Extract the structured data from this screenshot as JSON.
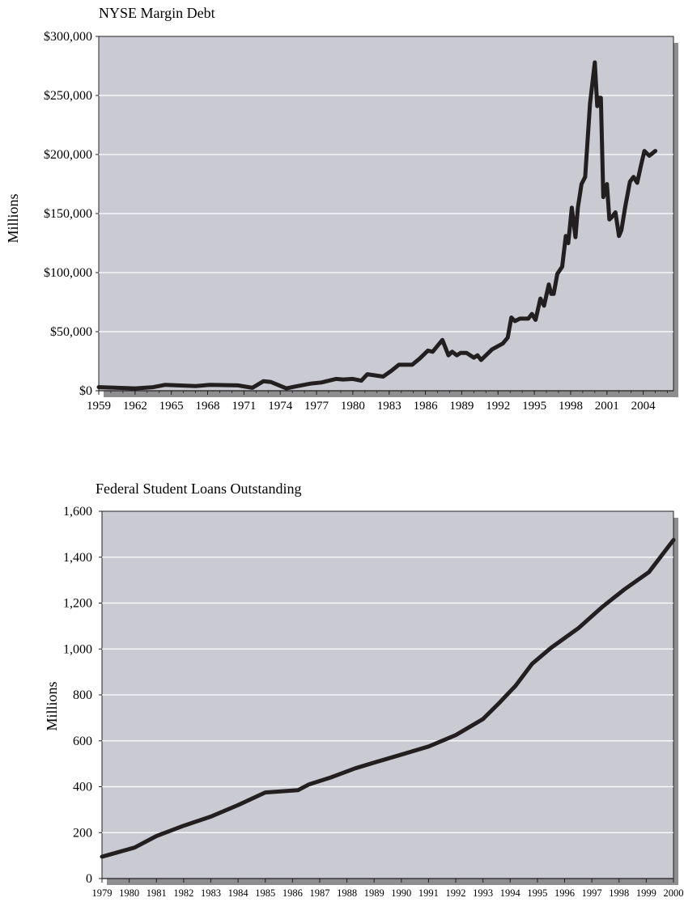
{
  "chart_data": [
    {
      "type": "line",
      "title": "NYSE Margin Debt",
      "ylabel": "Millions",
      "xlabel": "",
      "ylim": [
        0,
        300000
      ],
      "xlim": [
        1959,
        2006.5
      ],
      "y_ticks": [
        0,
        50000,
        100000,
        150000,
        200000,
        250000,
        300000
      ],
      "y_tick_labels": [
        "$0",
        "$50,000",
        "$100,000",
        "$150,000",
        "$200,000",
        "$250,000",
        "$300,000"
      ],
      "x_tick_labels": [
        "1959",
        "1962",
        "1965",
        "1968",
        "1971",
        "1974",
        "1977",
        "1980",
        "1983",
        "1986",
        "1989",
        "1992",
        "1995",
        "1998",
        "2001",
        "2004"
      ],
      "grid": true,
      "series": [
        {
          "x": [
            1959,
            1962,
            1963.5,
            1964.5,
            1967,
            1968.2,
            1970.5,
            1971.7,
            1972.6,
            1973.2,
            1974.5,
            1975.2,
            1976.5,
            1977.4,
            1978.6,
            1979.2,
            1980,
            1980.7,
            1981.2,
            1982.5,
            1983.2,
            1983.8,
            1984.9,
            1985.5,
            1986.2,
            1986.6,
            1987.4,
            1987.9,
            1988.2,
            1988.6,
            1988.9,
            1989.4,
            1990,
            1990.3,
            1990.6,
            1991.5,
            1992.4,
            1992.8,
            1993.1,
            1993.4,
            1993.8,
            1994.5,
            1994.8,
            1995.1,
            1995.5,
            1995.8,
            1996.2,
            1996.4,
            1996.6,
            1996.9,
            1997.3,
            1997.6,
            1997.8,
            1998.1,
            1998.4,
            1998.6,
            1998.9,
            1999.2,
            1999.6,
            2000,
            2000.2,
            2000.3,
            2000.5,
            2000.7,
            2001,
            2001.2,
            2001.4,
            2001.7,
            2002,
            2002.2,
            2002.5,
            2002.9,
            2003.2,
            2003.5,
            2003.8,
            2004.1,
            2004.5,
            2005
          ],
          "y": [
            3000,
            2000,
            3000,
            5000,
            4000,
            5000,
            4500,
            2500,
            8000,
            7500,
            2000,
            3500,
            6000,
            7000,
            10000,
            9500,
            10000,
            8500,
            14000,
            12000,
            17000,
            22000,
            22000,
            27000,
            34000,
            33000,
            43000,
            30000,
            33000,
            30000,
            32000,
            32000,
            28000,
            30000,
            26000,
            35000,
            40000,
            45000,
            62000,
            59000,
            61000,
            61000,
            65000,
            60000,
            78000,
            72000,
            90000,
            82000,
            82000,
            99000,
            105000,
            131000,
            125000,
            155000,
            130000,
            155000,
            175000,
            181000,
            243000,
            278000,
            241000,
            248000,
            248000,
            164000,
            175000,
            145000,
            147000,
            151000,
            131000,
            136000,
            155000,
            177000,
            181000,
            176000,
            190000,
            203000,
            199000,
            203000
          ]
        }
      ]
    },
    {
      "type": "line",
      "title": "Federal Student Loans Outstanding",
      "ylabel": "Millions",
      "xlabel": "",
      "ylim": [
        0,
        1600
      ],
      "xlim": [
        1979,
        2000
      ],
      "y_ticks": [
        0,
        200,
        400,
        600,
        800,
        1000,
        1200,
        1400,
        1600
      ],
      "y_tick_labels": [
        "0",
        "200",
        "400",
        "600",
        "800",
        "1,000",
        "1,200",
        "1,400",
        "1,600"
      ],
      "x_tick_labels": [
        "1979",
        "1980",
        "1981",
        "1982",
        "1983",
        "1984",
        "1985",
        "1986",
        "1987",
        "1988",
        "1989",
        "1990",
        "1991",
        "1992",
        "1993",
        "1994",
        "1995",
        "1996",
        "1997",
        "1998",
        "1999",
        "2000"
      ],
      "grid": true,
      "series": [
        {
          "x": [
            1979,
            1980.2,
            1981,
            1982,
            1983,
            1984,
            1985,
            1986.2,
            1986.6,
            1987.4,
            1988.3,
            1989,
            1990,
            1991,
            1992,
            1993,
            1993.6,
            1994.2,
            1994.8,
            1995.5,
            1996.5,
            1997.4,
            1998.2,
            1999.1,
            2000
          ],
          "y": [
            95,
            135,
            185,
            230,
            270,
            320,
            375,
            385,
            410,
            440,
            480,
            505,
            540,
            575,
            625,
            695,
            765,
            840,
            935,
            1005,
            1090,
            1185,
            1260,
            1335,
            1475
          ]
        }
      ]
    }
  ]
}
